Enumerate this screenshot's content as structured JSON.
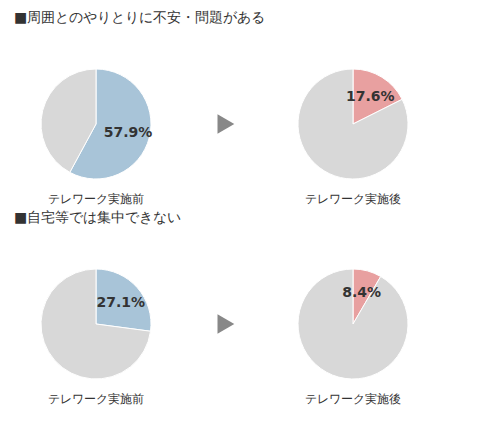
{
  "chart_data": [
    {
      "type": "pie",
      "title": "■周囲とのやりとりに不安・問題がある",
      "subtitle": "テレワーク実施前",
      "values": [
        57.9,
        42.1
      ],
      "colors": [
        "#a8c4d8",
        "#d8d8d8"
      ],
      "value_labels": [
        "57.9%",
        null
      ],
      "data_labels": true
    },
    {
      "type": "pie",
      "subtitle": "テレワーク実施後",
      "values": [
        17.6,
        82.4
      ],
      "colors": [
        "#e8a0a0",
        "#d8d8d8"
      ],
      "value_labels": [
        "17.6%",
        null
      ],
      "data_labels": true
    },
    {
      "type": "pie",
      "title": "■自宅等では集中できない",
      "subtitle": "テレワーク実施前",
      "values": [
        27.1,
        72.9
      ],
      "colors": [
        "#a8c4d8",
        "#d8d8d8"
      ],
      "value_labels": [
        "27.1%",
        null
      ],
      "data_labels": true
    },
    {
      "type": "pie",
      "subtitle": "テレワーク実施後",
      "values": [
        8.4,
        91.6
      ],
      "colors": [
        "#e8a0a0",
        "#d8d8d8"
      ],
      "value_labels": [
        "8.4%",
        null
      ],
      "data_labels": true
    }
  ]
}
